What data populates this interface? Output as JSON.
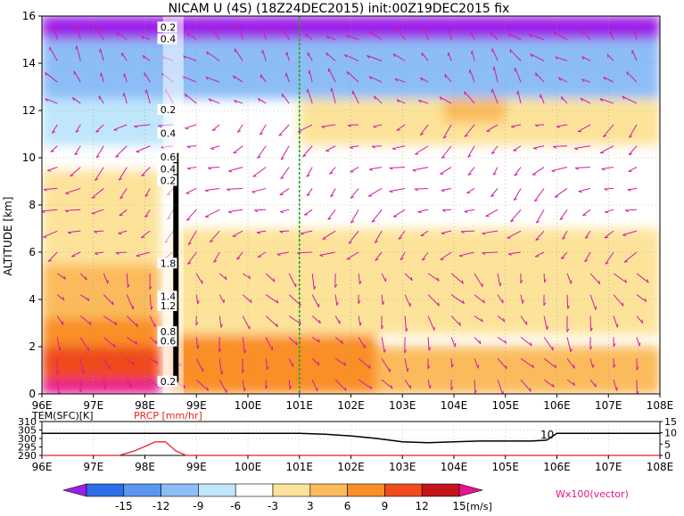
{
  "chart_data": [
    {
      "type": "heatmap",
      "title": "NICAM U (4S) (18Z24DEC2015) init:00Z19DEC2015 fix",
      "xlabel": "",
      "ylabel": "ALTITUDE [km]",
      "xlim": [
        96,
        108
      ],
      "ylim": [
        0,
        16
      ],
      "x_ticks": [
        "96E",
        "97E",
        "98E",
        "99E",
        "100E",
        "101E",
        "102E",
        "103E",
        "104E",
        "105E",
        "106E",
        "107E",
        "108E"
      ],
      "y_ticks": [
        "0",
        "2",
        "4",
        "6",
        "8",
        "10",
        "12",
        "14",
        "16"
      ],
      "grid": true,
      "marker_line_x": 101,
      "bands": [
        {
          "y0": 0,
          "y1": 0.6,
          "x0": 96,
          "x1": 98.3,
          "level": 15
        },
        {
          "y0": 0.6,
          "y1": 2.0,
          "x0": 96,
          "x1": 98.3,
          "level": 12
        },
        {
          "y0": 2.0,
          "y1": 3.2,
          "x0": 96,
          "x1": 98.3,
          "level": 9
        },
        {
          "y0": 3.2,
          "y1": 5.5,
          "x0": 96,
          "x1": 98.3,
          "level": 6
        },
        {
          "y0": 5.5,
          "y1": 9.5,
          "x0": 96,
          "x1": 98.3,
          "level": 3
        },
        {
          "y0": 9.5,
          "y1": 10.5,
          "x0": 96,
          "x1": 108,
          "level": 0
        },
        {
          "y0": 10.5,
          "y1": 12.5,
          "x0": 96,
          "x1": 98.5,
          "level": -3
        },
        {
          "y0": 12.5,
          "y1": 15.0,
          "x0": 96,
          "x1": 108,
          "level": -6
        },
        {
          "y0": 15.0,
          "y1": 16.0,
          "x0": 96,
          "x1": 108,
          "level": -15
        },
        {
          "y0": 0,
          "y1": 2.5,
          "x0": 98.5,
          "x1": 102.5,
          "level": 9
        },
        {
          "y0": 0,
          "y1": 2.0,
          "x0": 102.5,
          "x1": 108,
          "level": 6
        },
        {
          "y0": 2.5,
          "y1": 5.0,
          "x0": 98.5,
          "x1": 108,
          "level": 3
        },
        {
          "y0": 5.0,
          "y1": 7.0,
          "x0": 98.5,
          "x1": 108,
          "level": 3
        },
        {
          "y0": 10.5,
          "y1": 12.5,
          "x0": 101.0,
          "x1": 108,
          "level": 3
        },
        {
          "y0": 11.5,
          "y1": 12.5,
          "x0": 103.8,
          "x1": 105.0,
          "level": 6
        }
      ],
      "contour_labels": [
        "0.2",
        "0.4",
        "0.2",
        "0.4",
        "0.6",
        "0.4",
        "0.2",
        "1.8",
        "1.4",
        "1.2",
        "0.8",
        "0.6",
        "0.2"
      ],
      "colorbar": {
        "levels": [
          "-15",
          "-12",
          "-9",
          "-6",
          "-3",
          "3",
          "6",
          "9",
          "12",
          "15"
        ],
        "colors": [
          "#9b1fe8",
          "#2b6ee8",
          "#5c96ef",
          "#8cbdf7",
          "#bfe6fb",
          "#ffffff",
          "#fde39a",
          "#fbbb5b",
          "#f98f28",
          "#f04a1f",
          "#c4141b",
          "#e8148c"
        ],
        "unit": "[m/s]"
      },
      "vector_label": "Wx100(vector)"
    },
    {
      "type": "line",
      "title": "",
      "xlim": [
        96,
        108
      ],
      "series": [
        {
          "name": "TEM(SFC)[K]",
          "x": [
            96,
            97,
            98,
            98.5,
            99,
            100,
            101,
            101.5,
            102,
            102.5,
            103,
            103.5,
            104,
            104.5,
            105,
            105.5,
            105.8,
            106,
            106.5,
            107,
            108
          ],
          "y": [
            303,
            303,
            303,
            303,
            303,
            303,
            303,
            302.5,
            301.5,
            300,
            298,
            297.5,
            298,
            298.5,
            298.5,
            298.5,
            299,
            303,
            303,
            303,
            303
          ]
        },
        {
          "name": "PRCP [mm/hr]",
          "x": [
            96,
            97,
            97.5,
            97.8,
            98,
            98.2,
            98.4,
            98.6,
            98.8,
            99,
            108
          ],
          "y": [
            0,
            0,
            0,
            2,
            4,
            6,
            6,
            2,
            0,
            0,
            0
          ]
        }
      ],
      "left_ticks": [
        "310",
        "305",
        "300",
        "295",
        "290"
      ],
      "right_ticks": [
        "15",
        "10",
        "5",
        "0"
      ],
      "x_ticks": [
        "96E",
        "97E",
        "98E",
        "99E",
        "100E",
        "101E",
        "102E",
        "103E",
        "104E",
        "105E",
        "106E",
        "107E",
        "108E"
      ],
      "annotation": "10"
    }
  ]
}
